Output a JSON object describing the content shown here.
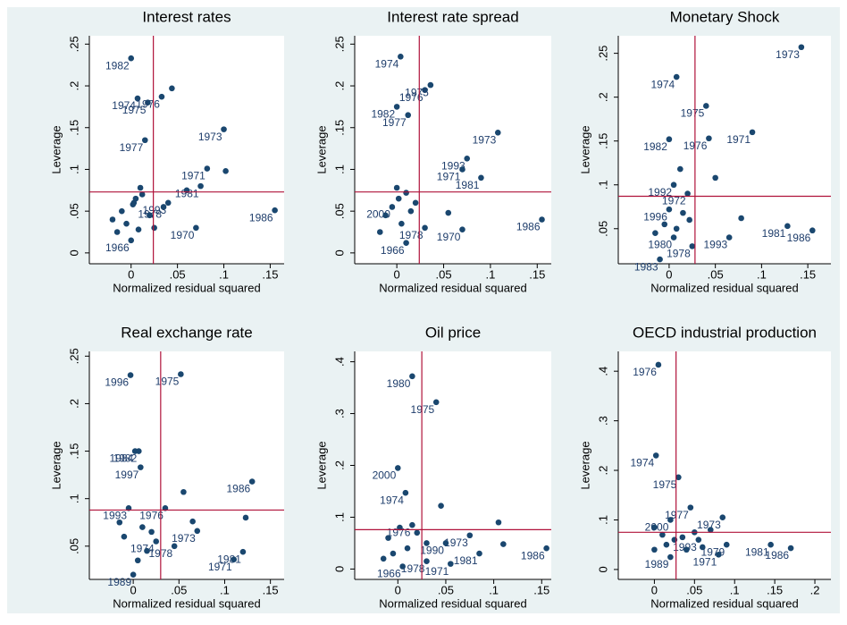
{
  "chart_data": [
    {
      "type": "scatter",
      "title": "Interest rates",
      "xlabel": "Normalized residual squared",
      "ylabel": "Leverage",
      "xlim": [
        -0.045,
        0.165
      ],
      "ylim": [
        -0.013,
        0.26
      ],
      "xticks": [
        0,
        {
          "value": 0.05,
          "label": ".05"
        },
        {
          "value": 0.1,
          "label": ".1"
        },
        {
          "value": 0.15,
          "label": ".15"
        }
      ],
      "yticks": [
        0,
        {
          "value": 0.05,
          "label": ".05"
        },
        {
          "value": 0.1,
          "label": ".1"
        },
        {
          "value": 0.15,
          "label": ".15"
        },
        {
          "value": 0.2,
          "label": ".2"
        },
        {
          "value": 0.25,
          "label": ".25"
        }
      ],
      "ref_x": 0.024,
      "ref_y": 0.073,
      "color": "#1a476f",
      "ref_color": "#b0123a",
      "x": [
        0.0,
        0.007,
        0.018,
        0.033,
        0.015,
        0.1,
        0.082,
        0.04,
        0.035,
        0.155,
        0.07,
        0.0,
        0.102,
        0.075,
        0.06,
        0.044,
        -0.01,
        -0.005,
        0.005,
        0.01,
        0.02,
        -0.015,
        0.002,
        0.012,
        -0.02,
        0.008,
        0.025,
        0.003
      ],
      "values": [
        0.233,
        0.185,
        0.18,
        0.187,
        0.135,
        0.148,
        0.101,
        0.06,
        0.055,
        0.051,
        0.03,
        0.015,
        0.098,
        0.08,
        0.075,
        0.197,
        0.05,
        0.035,
        0.065,
        0.078,
        0.045,
        0.025,
        0.058,
        0.07,
        0.04,
        0.028,
        0.03,
        0.06
      ],
      "point_labels": [
        "1982",
        "1974",
        "1975",
        "1976",
        "1977",
        "1973",
        "1971",
        "1993",
        "1978",
        "1986",
        "1970",
        "1966",
        null,
        "1981",
        null,
        null,
        null,
        null,
        null,
        null,
        null,
        null,
        null,
        null,
        null,
        null,
        null,
        null
      ]
    },
    {
      "type": "scatter",
      "title": "Interest rate spread",
      "xlabel": "Normalized residual squared",
      "ylabel": "Leverage",
      "xlim": [
        -0.045,
        0.165
      ],
      "ylim": [
        -0.013,
        0.26
      ],
      "xticks": [
        0,
        {
          "value": 0.05,
          "label": ".05"
        },
        {
          "value": 0.1,
          "label": ".1"
        },
        {
          "value": 0.15,
          "label": ".15"
        }
      ],
      "yticks": [
        0,
        {
          "value": 0.05,
          "label": ".05"
        },
        {
          "value": 0.1,
          "label": ".1"
        },
        {
          "value": 0.15,
          "label": ".15"
        },
        {
          "value": 0.2,
          "label": ".2"
        },
        {
          "value": 0.25,
          "label": ".25"
        }
      ],
      "ref_x": 0.024,
      "ref_y": 0.073,
      "color": "#1a476f",
      "ref_color": "#b0123a",
      "x": [
        0.004,
        0.03,
        0.036,
        0.0,
        0.012,
        0.108,
        0.075,
        0.07,
        0.09,
        0.155,
        0.07,
        0.03,
        -0.005,
        0.01,
        0.055,
        0.0,
        0.01,
        -0.012,
        0.005,
        0.02,
        -0.018,
        0.015,
        0.002
      ],
      "values": [
        0.235,
        0.195,
        0.201,
        0.175,
        0.165,
        0.144,
        0.113,
        0.1,
        0.09,
        0.04,
        0.028,
        0.03,
        0.055,
        0.012,
        0.048,
        0.078,
        0.072,
        0.045,
        0.035,
        0.06,
        0.025,
        0.05,
        0.065
      ],
      "point_labels": [
        "1974",
        "1976",
        "1975",
        "1982",
        "1977",
        "1973",
        "1993",
        "1971",
        "1981",
        "1986",
        "1970",
        "1978",
        "2000",
        "1966",
        null,
        null,
        null,
        null,
        null,
        null,
        null,
        null,
        null
      ]
    },
    {
      "type": "scatter",
      "title": "Monetary Shock",
      "xlabel": "Normalized residual squared",
      "ylabel": "Leverage",
      "xlim": [
        -0.055,
        0.175
      ],
      "ylim": [
        0.01,
        0.27
      ],
      "xticks": [
        0,
        {
          "value": 0.05,
          "label": ".05"
        },
        {
          "value": 0.1,
          "label": ".1"
        },
        {
          "value": 0.15,
          "label": ".15"
        }
      ],
      "yticks": [
        {
          "value": 0.05,
          "label": ".05"
        },
        {
          "value": 0.1,
          "label": ".1"
        },
        {
          "value": 0.15,
          "label": ".15"
        },
        {
          "value": 0.2,
          "label": ".2"
        },
        {
          "value": 0.25,
          "label": ".25"
        }
      ],
      "ref_x": 0.028,
      "ref_y": 0.087,
      "color": "#1a476f",
      "ref_color": "#b0123a",
      "x": [
        0.143,
        0.008,
        0.04,
        0.0,
        0.043,
        0.09,
        0.005,
        0.02,
        0.0,
        0.065,
        0.128,
        0.155,
        0.025,
        -0.01,
        0.005,
        0.05,
        0.078,
        0.012,
        -0.005,
        0.015,
        0.008,
        -0.015,
        0.022
      ],
      "values": [
        0.257,
        0.223,
        0.19,
        0.152,
        0.153,
        0.16,
        0.1,
        0.09,
        0.072,
        0.04,
        0.053,
        0.048,
        0.03,
        0.015,
        0.04,
        0.108,
        0.062,
        0.118,
        0.055,
        0.068,
        0.05,
        0.045,
        0.06
      ],
      "point_labels": [
        "1973",
        "1974",
        "1975",
        "1982",
        "1976",
        "1971",
        "1992",
        "1972",
        "1996",
        "1993",
        "1981",
        "1986",
        "1978",
        "1983",
        "1980",
        null,
        null,
        null,
        null,
        null,
        null,
        null,
        null
      ]
    },
    {
      "type": "scatter",
      "title": "Real exchange rate",
      "xlabel": "Normalized residual squared",
      "ylabel": "Leverage",
      "xlim": [
        -0.048,
        0.165
      ],
      "ylim": [
        0.015,
        0.255
      ],
      "xticks": [
        0,
        {
          "value": 0.05,
          "label": ".05"
        },
        {
          "value": 0.1,
          "label": ".1"
        },
        {
          "value": 0.15,
          "label": ".15"
        }
      ],
      "yticks": [
        {
          "value": 0.05,
          "label": ".05"
        },
        {
          "value": 0.1,
          "label": ".1"
        },
        {
          "value": 0.15,
          "label": ".15"
        },
        {
          "value": 0.2,
          "label": ".2"
        },
        {
          "value": 0.25,
          "label": ".25"
        }
      ],
      "ref_x": 0.03,
      "ref_y": 0.088,
      "color": "#1a476f",
      "ref_color": "#b0123a",
      "x": [
        -0.003,
        0.052,
        0.002,
        0.006,
        0.008,
        0.13,
        0.035,
        -0.005,
        0.07,
        0.045,
        0.025,
        0.12,
        0.11,
        0.0,
        0.055,
        0.065,
        0.123,
        0.01,
        -0.01,
        0.015,
        0.005,
        -0.015,
        0.02
      ],
      "values": [
        0.23,
        0.231,
        0.15,
        0.15,
        0.133,
        0.118,
        0.09,
        0.09,
        0.066,
        0.05,
        0.055,
        0.044,
        0.036,
        0.02,
        0.107,
        0.076,
        0.08,
        0.07,
        0.06,
        0.045,
        0.035,
        0.075,
        0.065
      ],
      "point_labels": [
        "1996",
        "1975",
        "1984",
        "1982",
        "1997",
        "1986",
        "1976",
        "1993",
        "1973",
        "1978",
        "1974",
        "1981",
        "1971",
        "1989",
        null,
        null,
        null,
        null,
        null,
        null,
        null,
        null,
        null
      ]
    },
    {
      "type": "scatter",
      "title": "Oil price",
      "xlabel": "Normalized residual squared",
      "ylabel": "Leverage",
      "xlim": [
        -0.045,
        0.16
      ],
      "ylim": [
        -0.02,
        0.42
      ],
      "xticks": [
        0,
        {
          "value": 0.05,
          "label": ".05"
        },
        {
          "value": 0.1,
          "label": ".1"
        },
        {
          "value": 0.15,
          "label": ".15"
        }
      ],
      "yticks": [
        0,
        {
          "value": 0.1,
          "label": ".1"
        },
        {
          "value": 0.2,
          "label": ".2"
        },
        {
          "value": 0.3,
          "label": ".3"
        },
        {
          "value": 0.4,
          "label": ".4"
        }
      ],
      "ref_x": 0.025,
      "ref_y": 0.076,
      "color": "#1a476f",
      "ref_color": "#b0123a",
      "x": [
        0.015,
        0.04,
        0.0,
        0.008,
        0.015,
        0.075,
        0.05,
        0.085,
        0.155,
        0.03,
        0.055,
        0.005,
        0.045,
        0.105,
        0.11,
        -0.01,
        0.01,
        -0.015,
        0.02,
        0.002,
        0.03,
        -0.005
      ],
      "values": [
        0.372,
        0.322,
        0.195,
        0.147,
        0.085,
        0.065,
        0.05,
        0.03,
        0.04,
        0.015,
        0.01,
        0.005,
        0.122,
        0.09,
        0.048,
        0.06,
        0.04,
        0.02,
        0.07,
        0.08,
        0.05,
        0.03
      ],
      "point_labels": [
        "1980",
        "1975",
        "2000",
        "1974",
        "1976",
        "1973",
        "1990",
        "1981",
        "1986",
        "1978",
        "1971",
        "1966",
        null,
        null,
        null,
        null,
        null,
        null,
        null,
        null,
        null,
        null
      ]
    },
    {
      "type": "scatter",
      "title": "OECD industrial production",
      "xlabel": "Normalized residual squared",
      "ylabel": "Leverage",
      "xlim": [
        -0.045,
        0.22
      ],
      "ylim": [
        -0.02,
        0.44
      ],
      "xticks": [
        0,
        {
          "value": 0.05,
          "label": ".05"
        },
        {
          "value": 0.1,
          "label": ".1"
        },
        {
          "value": 0.15,
          "label": ".15"
        },
        {
          "value": 0.2,
          "label": ".2"
        }
      ],
      "yticks": [
        0,
        {
          "value": 0.1,
          "label": ".1"
        },
        {
          "value": 0.2,
          "label": ".2"
        },
        {
          "value": 0.3,
          "label": ".3"
        },
        {
          "value": 0.4,
          "label": ".4"
        }
      ],
      "ref_x": 0.027,
      "ref_y": 0.075,
      "color": "#1a476f",
      "ref_color": "#b0123a",
      "x": [
        0.005,
        0.002,
        0.03,
        0.045,
        0.085,
        0.02,
        0.055,
        0.09,
        0.145,
        0.17,
        0.08,
        0.02,
        0.0,
        0.01,
        0.035,
        0.06,
        0.07,
        0.04,
        0.015,
        0.025,
        0.05,
        0.0
      ],
      "values": [
        0.413,
        0.23,
        0.186,
        0.125,
        0.105,
        0.1,
        0.06,
        0.05,
        0.05,
        0.043,
        0.03,
        0.025,
        0.085,
        0.07,
        0.065,
        0.045,
        0.08,
        0.04,
        0.05,
        0.06,
        0.075,
        0.04
      ],
      "point_labels": [
        "1976",
        "1974",
        "1975",
        "1977",
        "1973",
        "2000",
        "1993",
        "1979",
        "1981",
        "1986",
        "1971",
        "1989",
        null,
        null,
        null,
        null,
        null,
        null,
        null,
        null,
        null,
        null
      ]
    }
  ]
}
